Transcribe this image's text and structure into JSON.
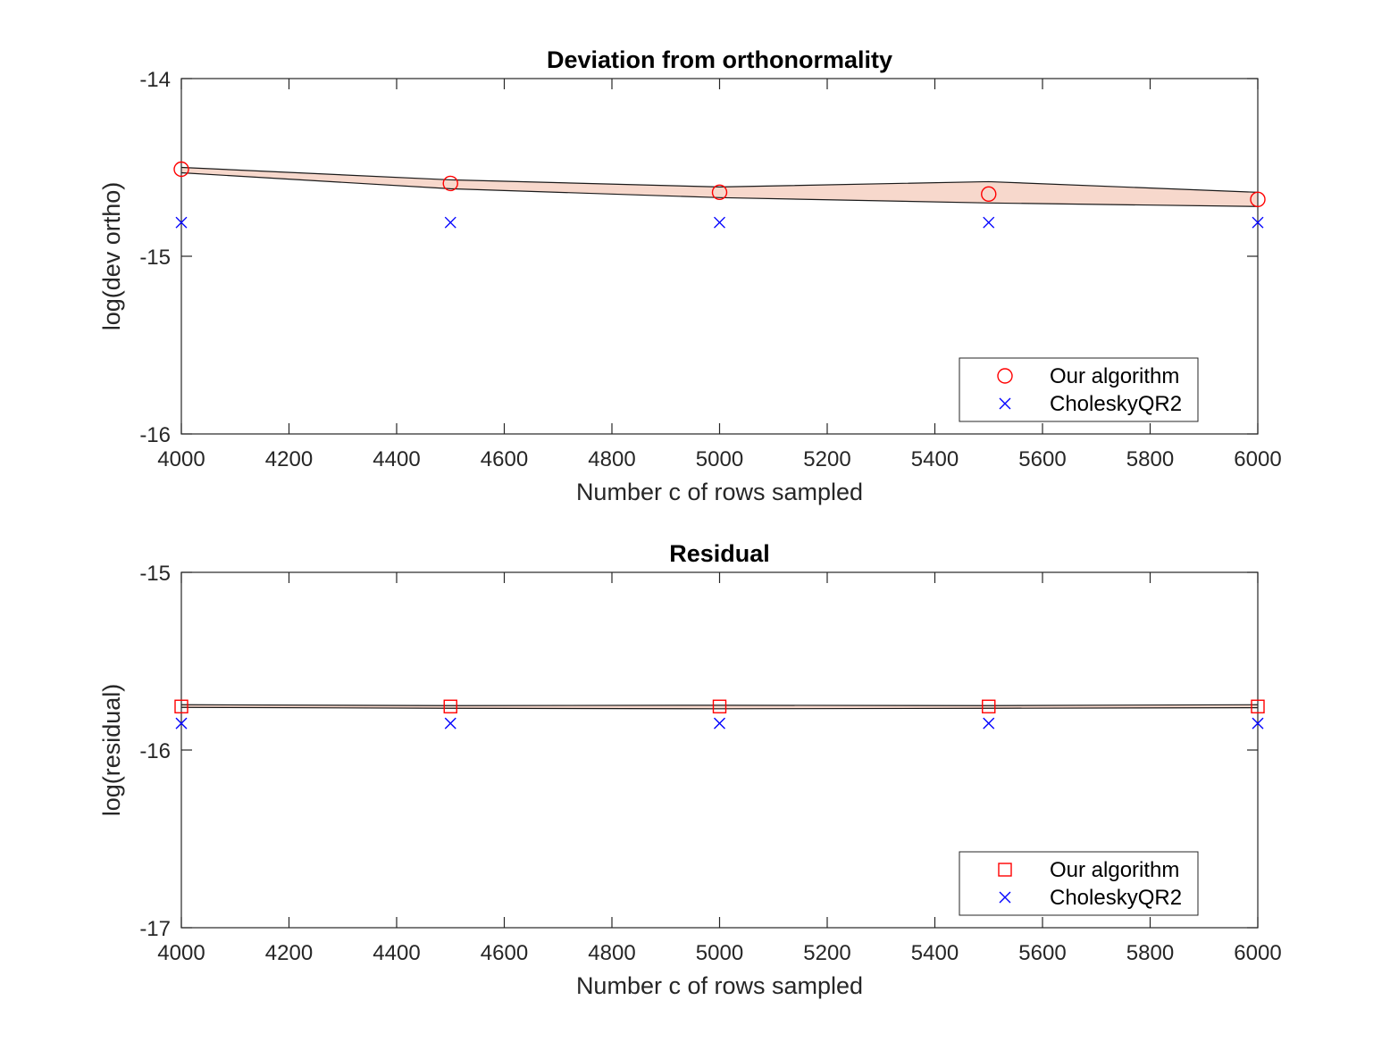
{
  "chart_data": [
    {
      "type": "scatter",
      "title": "Deviation from orthonormality",
      "xlabel": "Number c of rows sampled",
      "ylabel": "log(dev ortho)",
      "xlim": [
        4000,
        6000
      ],
      "ylim": [
        -16,
        -14
      ],
      "xticks": [
        4000,
        4200,
        4400,
        4600,
        4800,
        5000,
        5200,
        5400,
        5600,
        5800,
        6000
      ],
      "yticks": [
        -16,
        -15,
        -14
      ],
      "x": [
        4000,
        4500,
        5000,
        5500,
        6000
      ],
      "band": {
        "color": "#f7d8cc",
        "upper": [
          -14.5,
          -14.57,
          -14.61,
          -14.58,
          -14.64
        ],
        "lower": [
          -14.53,
          -14.62,
          -14.67,
          -14.7,
          -14.72
        ]
      },
      "series": [
        {
          "name": "Our algorithm",
          "marker": "circle",
          "color": "#ff0000",
          "values": [
            -14.51,
            -14.59,
            -14.64,
            -14.65,
            -14.68
          ]
        },
        {
          "name": "CholeskyQR2",
          "marker": "x",
          "color": "#0000ff",
          "values": [
            -14.81,
            -14.81,
            -14.81,
            -14.81,
            -14.81
          ]
        }
      ],
      "grid": false,
      "legend": "bottom-right"
    },
    {
      "type": "scatter",
      "title": "Residual",
      "xlabel": "Number c of rows sampled",
      "ylabel": "log(residual)",
      "xlim": [
        4000,
        6000
      ],
      "ylim": [
        -17,
        -15
      ],
      "xticks": [
        4000,
        4200,
        4400,
        4600,
        4800,
        5000,
        5200,
        5400,
        5600,
        5800,
        6000
      ],
      "yticks": [
        -17,
        -16,
        -15
      ],
      "x": [
        4000,
        4500,
        5000,
        5500,
        6000
      ],
      "band": {
        "color": "#f7d8cc",
        "upper": [
          -15.745,
          -15.75,
          -15.748,
          -15.75,
          -15.745
        ],
        "lower": [
          -15.76,
          -15.765,
          -15.768,
          -15.765,
          -15.762
        ]
      },
      "series": [
        {
          "name": "Our algorithm",
          "marker": "square",
          "color": "#ff0000",
          "values": [
            -15.755,
            -15.755,
            -15.755,
            -15.755,
            -15.755
          ]
        },
        {
          "name": "CholeskyQR2",
          "marker": "x",
          "color": "#0000ff",
          "values": [
            -15.85,
            -15.85,
            -15.85,
            -15.85,
            -15.85
          ]
        }
      ],
      "grid": false,
      "legend": "bottom-right"
    }
  ]
}
